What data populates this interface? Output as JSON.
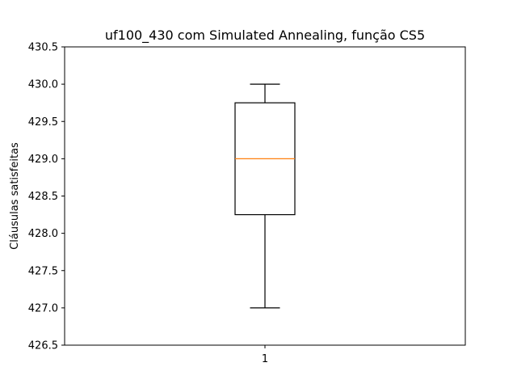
{
  "chart_data": {
    "type": "boxplot",
    "title": "uf100_430 com Simulated Annealing, função CS5",
    "xlabel": "",
    "ylabel": "Cláusulas satisfeitas",
    "categories": [
      "1"
    ],
    "boxes": [
      {
        "category": "1",
        "whisker_low": 427.0,
        "q1": 428.25,
        "median": 429.0,
        "q3": 429.75,
        "whisker_high": 430.0
      }
    ],
    "ylim": [
      426.5,
      430.5
    ],
    "yticks": [
      "426.5",
      "427.0",
      "427.5",
      "428.0",
      "428.5",
      "429.0",
      "429.5",
      "430.0",
      "430.5"
    ],
    "grid": false,
    "colors": {
      "box": "#000000",
      "median": "#ff7f0e",
      "whisker": "#000000"
    }
  }
}
